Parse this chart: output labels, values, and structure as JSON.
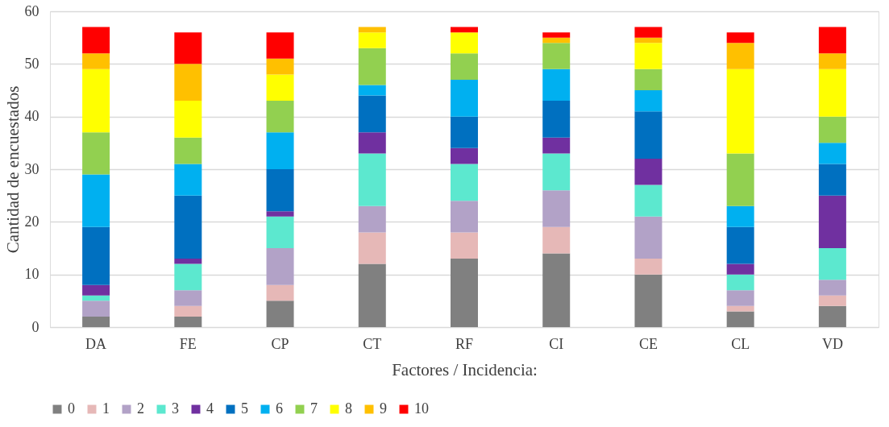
{
  "chart_data": {
    "type": "bar",
    "stacked": true,
    "xlabel": "Factores  / Incidencia:",
    "ylabel": "Cantidad de encuestados",
    "categories": [
      "DA",
      "FE",
      "CP",
      "CT",
      "RF",
      "CI",
      "CE",
      "CL",
      "VD"
    ],
    "ylim": [
      0,
      60
    ],
    "yticks": [
      0,
      10,
      20,
      30,
      40,
      50,
      60
    ],
    "grid": "y",
    "legend": "bottom",
    "series": [
      {
        "name": "0",
        "color": "#808080",
        "values": [
          2,
          2,
          5,
          12,
          13,
          14,
          10,
          3,
          4
        ]
      },
      {
        "name": "1",
        "color": "#e6b8b7",
        "values": [
          0,
          2,
          3,
          6,
          5,
          5,
          3,
          1,
          2
        ]
      },
      {
        "name": "2",
        "color": "#b2a2c7",
        "values": [
          3,
          3,
          7,
          5,
          6,
          7,
          8,
          3,
          3
        ]
      },
      {
        "name": "3",
        "color": "#5ce8cf",
        "values": [
          1,
          5,
          6,
          10,
          7,
          7,
          6,
          3,
          6
        ]
      },
      {
        "name": "4",
        "color": "#7030a0",
        "values": [
          2,
          1,
          1,
          4,
          3,
          3,
          5,
          2,
          10
        ]
      },
      {
        "name": "5",
        "color": "#0070c0",
        "values": [
          11,
          12,
          8,
          7,
          6,
          7,
          9,
          7,
          6
        ]
      },
      {
        "name": "6",
        "color": "#00b0f0",
        "values": [
          10,
          6,
          7,
          2,
          7,
          6,
          4,
          4,
          4
        ]
      },
      {
        "name": "7",
        "color": "#92d050",
        "values": [
          8,
          5,
          6,
          7,
          5,
          5,
          4,
          10,
          5
        ]
      },
      {
        "name": "8",
        "color": "#ffff00",
        "values": [
          12,
          7,
          5,
          3,
          4,
          0,
          5,
          16,
          9
        ]
      },
      {
        "name": "9",
        "color": "#ffc000",
        "values": [
          3,
          7,
          3,
          1,
          0,
          1,
          1,
          5,
          3
        ]
      },
      {
        "name": "10",
        "color": "#ff0000",
        "values": [
          5,
          6,
          5,
          0,
          1,
          1,
          2,
          2,
          5
        ]
      }
    ]
  }
}
